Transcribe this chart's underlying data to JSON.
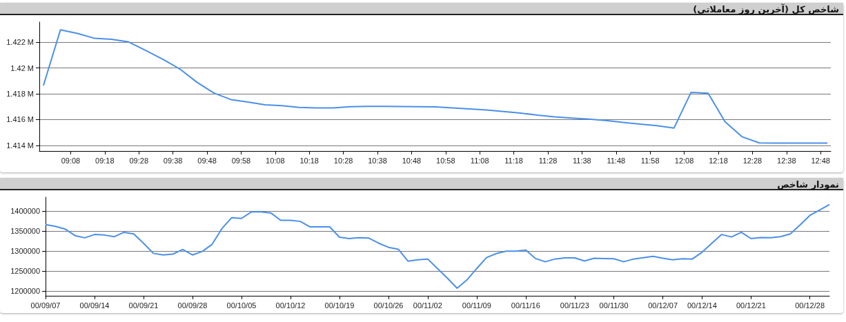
{
  "chart_data": [
    {
      "type": "line",
      "title": "شاخص کل (آخرین روز معاملاتی)",
      "color": "#4a8fea",
      "marker": "none",
      "grid": "y",
      "x": [
        9.0,
        9.0833,
        9.1667,
        9.25,
        9.3333,
        9.4167,
        9.5,
        9.5833,
        9.6667,
        9.75,
        9.8333,
        9.9167,
        10.0,
        10.0833,
        10.1667,
        10.25,
        10.3333,
        10.4167,
        10.5,
        10.5833,
        10.6667,
        10.75,
        10.8333,
        10.9167,
        11.0,
        11.0833,
        11.1667,
        11.25,
        11.3333,
        11.4167,
        11.5,
        11.5833,
        11.6667,
        11.75,
        11.8333,
        11.9167,
        12.0,
        12.0833,
        12.1667,
        12.25,
        12.3333,
        12.4167,
        12.5,
        12.5833,
        12.6667,
        12.75,
        12.8333
      ],
      "values": [
        1.41864,
        1.42295,
        1.42267,
        1.42229,
        1.42222,
        1.42201,
        1.42135,
        1.42067,
        1.41992,
        1.4189,
        1.41806,
        1.41755,
        1.41736,
        1.41715,
        1.41708,
        1.41695,
        1.41691,
        1.41691,
        1.417,
        1.41702,
        1.41702,
        1.41701,
        1.417,
        1.41699,
        1.41691,
        1.41683,
        1.41674,
        1.41663,
        1.41651,
        1.41634,
        1.41621,
        1.41612,
        1.41604,
        1.41593,
        1.41578,
        1.41565,
        1.41553,
        1.41535,
        1.41811,
        1.41804,
        1.41582,
        1.41467,
        1.4142,
        1.41419,
        1.41418,
        1.41418,
        1.41418
      ],
      "xlim": [
        8.98,
        12.85
      ],
      "xticks": [
        {
          "value": 9.1333,
          "label": "09:08"
        },
        {
          "value": 9.3,
          "label": "09:18"
        },
        {
          "value": 9.4667,
          "label": "09:28"
        },
        {
          "value": 9.6333,
          "label": "09:38"
        },
        {
          "value": 9.8,
          "label": "09:48"
        },
        {
          "value": 9.9667,
          "label": "09:58"
        },
        {
          "value": 10.1333,
          "label": "10:08"
        },
        {
          "value": 10.3,
          "label": "10:18"
        },
        {
          "value": 10.4667,
          "label": "10:28"
        },
        {
          "value": 10.6333,
          "label": "10:38"
        },
        {
          "value": 10.8,
          "label": "10:48"
        },
        {
          "value": 10.9667,
          "label": "10:58"
        },
        {
          "value": 11.1333,
          "label": "11:08"
        },
        {
          "value": 11.3,
          "label": "11:18"
        },
        {
          "value": 11.4667,
          "label": "11:28"
        },
        {
          "value": 11.6333,
          "label": "11:38"
        },
        {
          "value": 11.8,
          "label": "11:48"
        },
        {
          "value": 11.9667,
          "label": "11:58"
        },
        {
          "value": 12.1333,
          "label": "12:08"
        },
        {
          "value": 12.3,
          "label": "12:18"
        },
        {
          "value": 12.4667,
          "label": "12:28"
        },
        {
          "value": 12.6333,
          "label": "12:38"
        },
        {
          "value": 12.8,
          "label": "12:48"
        }
      ],
      "ylim": [
        1.41357,
        1.42355
      ],
      "yticks": [
        {
          "value": 1.414,
          "label": "1.414 M"
        },
        {
          "value": 1.416,
          "label": "1.416 M"
        },
        {
          "value": 1.418,
          "label": "1.418 M"
        },
        {
          "value": 1.42,
          "label": "1.42 M"
        },
        {
          "value": 1.422,
          "label": "1.422 M"
        }
      ]
    },
    {
      "type": "line",
      "title": "نمودار شاخص",
      "color": "#4a8fea",
      "marker": "none",
      "grid": "y",
      "categories": [
        "00/09/07",
        null,
        null,
        null,
        null,
        "00/09/14",
        null,
        null,
        null,
        null,
        "00/09/21",
        null,
        null,
        null,
        null,
        "00/09/28",
        null,
        null,
        null,
        null,
        "00/10/05",
        null,
        null,
        null,
        null,
        "00/10/12",
        null,
        null,
        null,
        null,
        "00/10/19",
        null,
        null,
        null,
        null,
        "00/10/26",
        null,
        null,
        null,
        "00/11/02",
        null,
        null,
        null,
        null,
        "00/11/09",
        null,
        null,
        null,
        null,
        "00/11/16",
        null,
        null,
        null,
        null,
        "00/11/23",
        null,
        null,
        null,
        "00/11/30",
        null,
        null,
        null,
        null,
        "00/12/07",
        null,
        null,
        null,
        "00/12/14",
        null,
        null,
        null,
        null,
        "00/12/21",
        null,
        null,
        null,
        null,
        null,
        "00/12/28",
        null,
        null
      ],
      "values": [
        1366000,
        1361800,
        1355000,
        1338600,
        1333100,
        1341300,
        1340000,
        1335800,
        1346800,
        1342700,
        1319500,
        1294200,
        1290100,
        1292200,
        1303800,
        1290100,
        1299000,
        1316700,
        1356300,
        1383600,
        1381600,
        1398000,
        1398000,
        1395200,
        1376800,
        1376800,
        1374100,
        1360400,
        1360400,
        1360400,
        1334500,
        1331100,
        1333100,
        1332400,
        1319500,
        1309200,
        1304400,
        1274400,
        1277800,
        1279900,
        1256000,
        1232100,
        1206800,
        1227300,
        1256000,
        1283300,
        1293500,
        1299700,
        1299700,
        1302400,
        1281200,
        1273000,
        1279900,
        1282600,
        1282600,
        1275100,
        1281900,
        1281200,
        1280500,
        1273000,
        1279900,
        1283300,
        1286700,
        1281900,
        1277800,
        1280500,
        1279900,
        1296900,
        1319500,
        1341300,
        1335200,
        1346800,
        1331100,
        1333800,
        1333100,
        1335800,
        1342700,
        1365200,
        1389100,
        1402700,
        1416400
      ],
      "ylim": [
        1187700,
        1434800
      ],
      "yticks": [
        1200000,
        1250000,
        1300000,
        1350000,
        1400000
      ]
    }
  ]
}
